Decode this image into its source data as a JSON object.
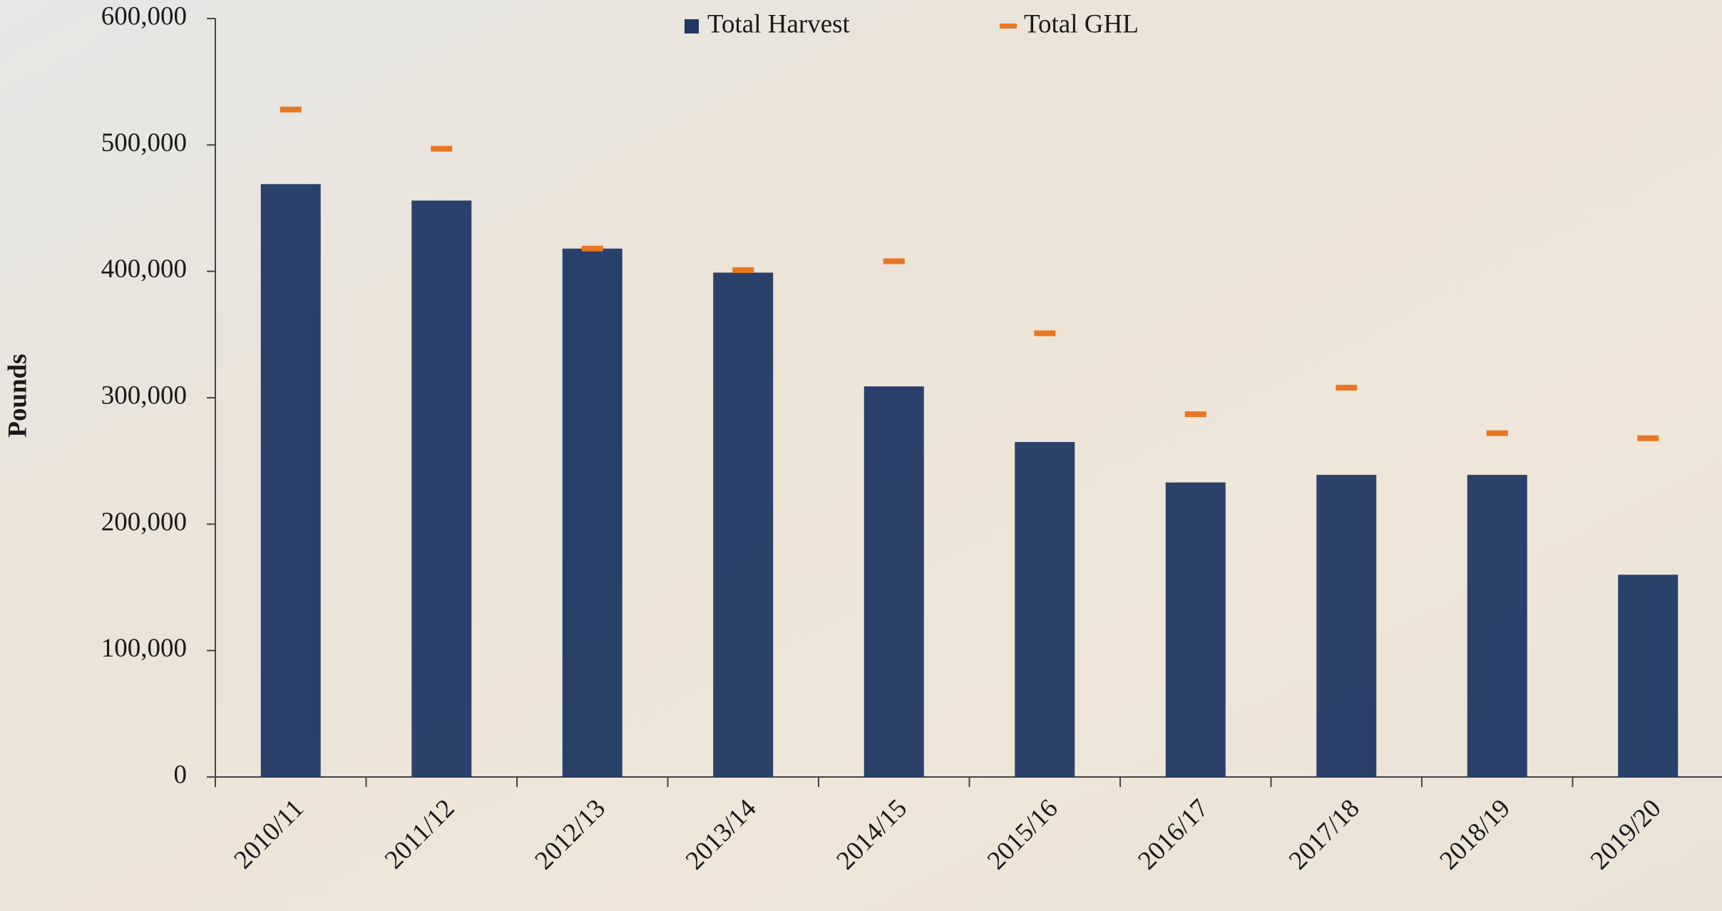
{
  "chart_data": {
    "type": "bar",
    "y_label": "Pounds",
    "categories": [
      "2010/11",
      "2011/12",
      "2012/13",
      "2013/14",
      "2014/15",
      "2015/16",
      "2016/17",
      "2017/18",
      "2018/19",
      "2019/20"
    ],
    "series": [
      {
        "name": "Total Harvest",
        "color": "#1f3864",
        "kind": "bar",
        "values": [
          469000,
          456000,
          418000,
          399000,
          309000,
          265000,
          233000,
          239000,
          239000,
          160000
        ]
      },
      {
        "name": "Total GHL",
        "color": "#e87722",
        "kind": "dash",
        "values": [
          528000,
          497000,
          418000,
          401000,
          408000,
          351000,
          287000,
          308000,
          272000,
          268000
        ]
      }
    ],
    "ylim": [
      0,
      600000
    ],
    "yticks": [
      0,
      {
        "value": 100000,
        "label": "100,000"
      },
      {
        "value": 200000,
        "label": "200,000"
      },
      {
        "value": 300000,
        "label": "300,000"
      },
      {
        "value": 400000,
        "label": "400,000"
      },
      {
        "value": 500000,
        "label": "500,000"
      },
      {
        "value": 600000,
        "label": "600,000"
      }
    ]
  }
}
